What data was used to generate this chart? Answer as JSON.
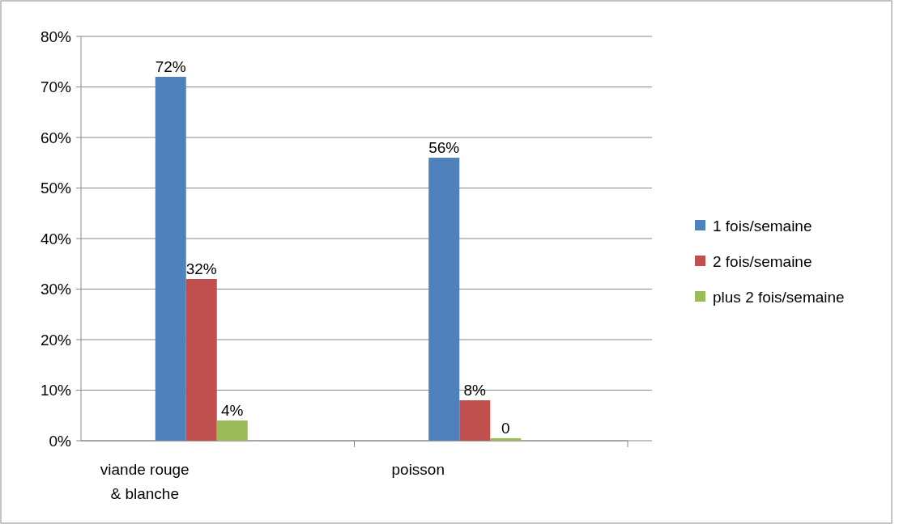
{
  "chart_data": {
    "type": "bar",
    "categories": [
      "viande rouge & blanche",
      "poisson"
    ],
    "series": [
      {
        "name": "1 fois/semaine",
        "color": "#4f81bd",
        "values": [
          72,
          56
        ],
        "value_labels": [
          "72%",
          "56%"
        ]
      },
      {
        "name": "2 fois/semaine",
        "color": "#c0504d",
        "values": [
          32,
          8
        ],
        "value_labels": [
          "32%",
          "8%"
        ]
      },
      {
        "name": "plus 2 fois/semaine",
        "color": "#9bbb59",
        "values": [
          4,
          0
        ],
        "value_labels": [
          "4%",
          "0"
        ]
      }
    ],
    "ylim": [
      0,
      80
    ],
    "yticks": [
      {
        "value": 0,
        "label": "0%"
      },
      {
        "value": 10,
        "label": "10%"
      },
      {
        "value": 20,
        "label": "20%"
      },
      {
        "value": 30,
        "label": "30%"
      },
      {
        "value": 40,
        "label": "40%"
      },
      {
        "value": 50,
        "label": "50%"
      },
      {
        "value": 60,
        "label": "60%"
      },
      {
        "value": 70,
        "label": "70%"
      },
      {
        "value": 80,
        "label": "80%"
      }
    ],
    "grid": "y",
    "legend": "right"
  }
}
